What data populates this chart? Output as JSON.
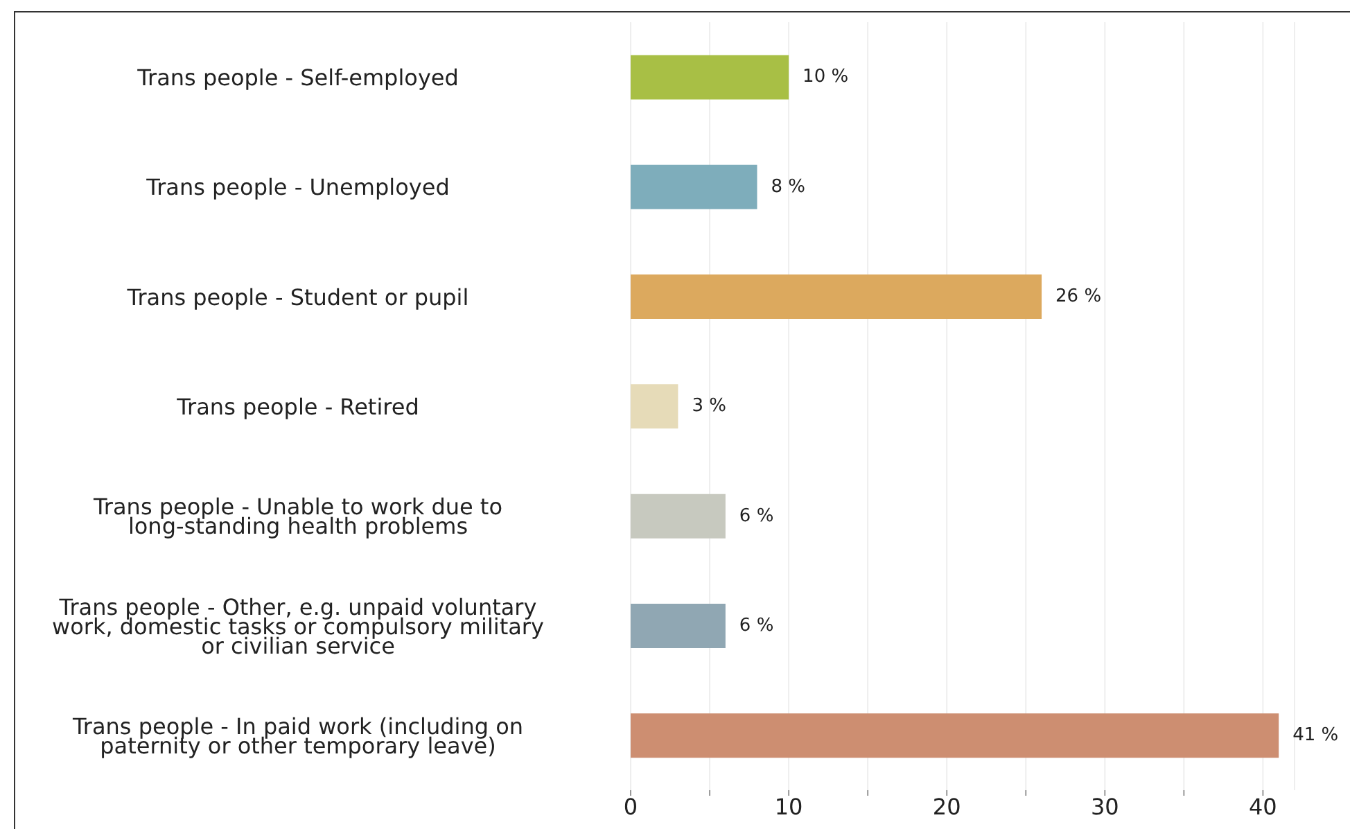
{
  "chart_data": {
    "type": "bar",
    "orientation": "horizontal",
    "categories": [
      "Trans people - Self-employed",
      "Trans people - Unemployed",
      "Trans people - Student or pupil",
      "Trans people - Retired",
      "Trans people - Unable to work due to long-standing health problems",
      "Trans people - Other, e.g. unpaid voluntary work, domestic tasks or compulsory military or civilian service",
      "Trans people - In paid work (including on paternity or other temporary leave)"
    ],
    "values": [
      10,
      8,
      26,
      3,
      6,
      6,
      41
    ],
    "colors": [
      "#a8bf45",
      "#7eadbb",
      "#dca95e",
      "#e6dbb8",
      "#c7c9bf",
      "#90a7b3",
      "#cd8e71"
    ],
    "value_labels": [
      "10 %",
      "8 %",
      "26 %",
      "3 %",
      "6 %",
      "6 %",
      "41 %"
    ],
    "xlim": [
      0,
      42
    ],
    "xticks": [
      0,
      {
        "value": 5,
        "label": null
      },
      10,
      {
        "value": 15,
        "label": null
      },
      20,
      {
        "value": 25,
        "label": null
      },
      30,
      {
        "value": 35,
        "label": null
      },
      40
    ],
    "grid": "x"
  }
}
